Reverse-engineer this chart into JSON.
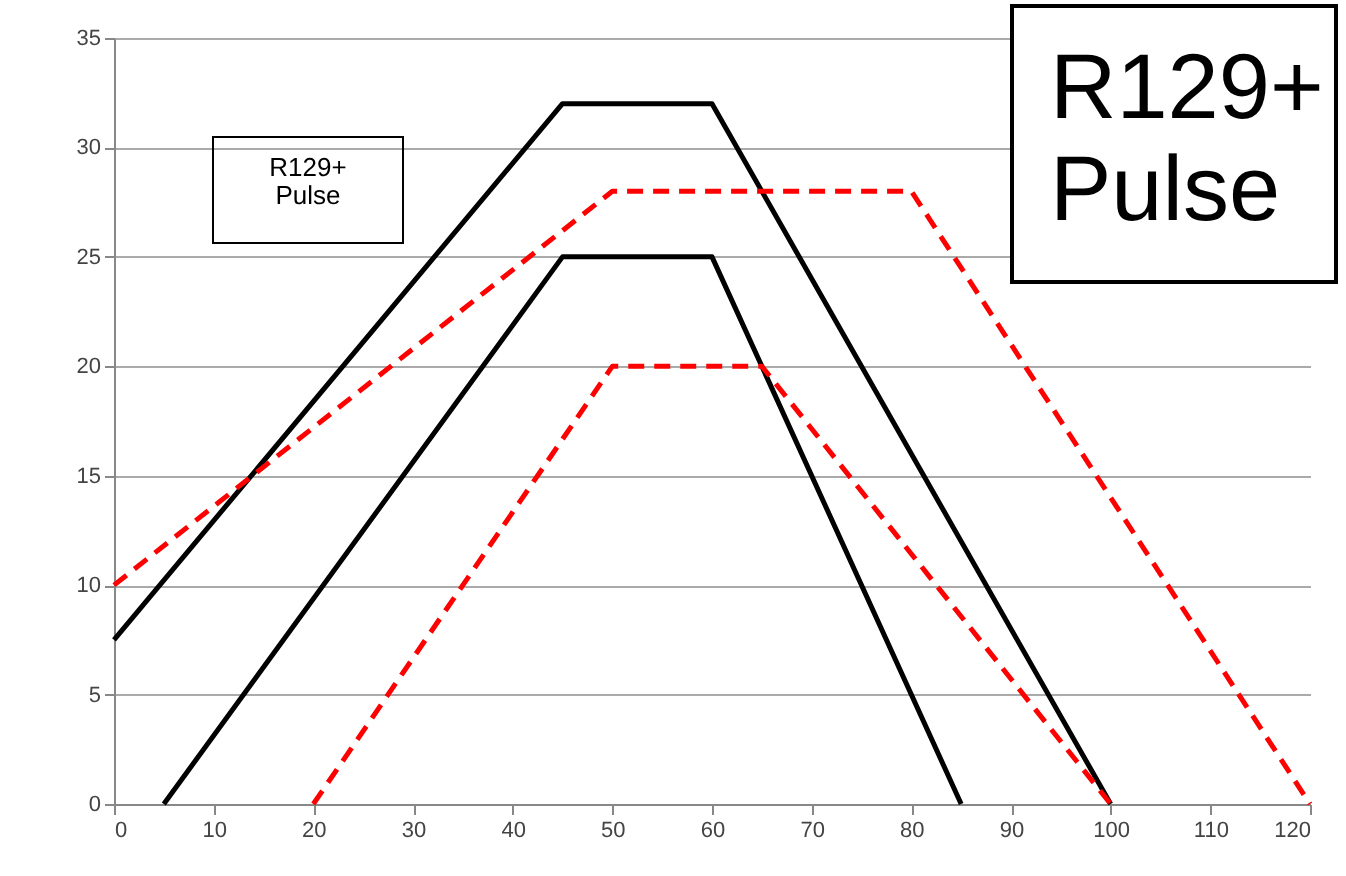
{
  "chart_data": {
    "type": "line",
    "xlim": [
      0,
      120
    ],
    "xticks": [
      0,
      10,
      20,
      30,
      40,
      50,
      60,
      70,
      80,
      90,
      100,
      110,
      120
    ],
    "ylim": [
      0,
      35
    ],
    "yticks": [
      0,
      5,
      10,
      15,
      20,
      25,
      30,
      35
    ],
    "grid": "y",
    "marker": "none",
    "annotations": [
      "R129+\nPulse",
      "R129+\nPulse"
    ],
    "series": [
      {
        "color": "#000000",
        "line_style": "solid",
        "x": [
          0,
          45,
          60,
          100
        ],
        "values": [
          7.5,
          32,
          32,
          0
        ]
      },
      {
        "color": "#000000",
        "line_style": "solid",
        "x": [
          5,
          45,
          60,
          85
        ],
        "values": [
          0,
          25,
          25,
          0
        ]
      },
      {
        "color": "#ff0000",
        "line_style": "dashed",
        "x": [
          0,
          50,
          80,
          120
        ],
        "values": [
          10,
          28,
          28,
          0
        ]
      },
      {
        "color": "#ff0000",
        "line_style": "dashed",
        "x": [
          20,
          50,
          65,
          100
        ],
        "values": [
          0,
          20,
          20,
          0
        ]
      }
    ]
  }
}
